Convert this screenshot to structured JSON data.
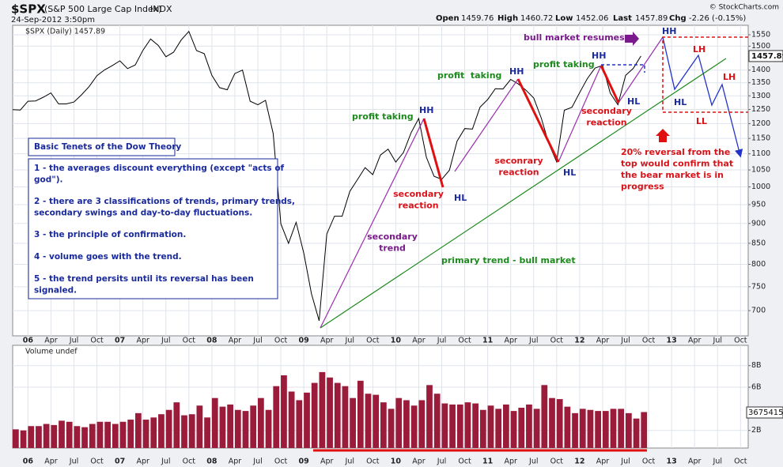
{
  "header": {
    "symbol": "$SPX",
    "name": "(S&P 500 Large Cap Index)",
    "exchange": "INDX",
    "date": "24-Sep-2012 3:50pm",
    "quote": [
      {
        "label": "Open",
        "value": 1459.76
      },
      {
        "label": "High",
        "value": 1460.72
      },
      {
        "label": "Low",
        "value": 1452.06
      },
      {
        "label": "Last",
        "value": 1457.89
      },
      {
        "label": "Chg",
        "value": "-2.26 (-0.15%)"
      }
    ],
    "credit": "© StockCharts.com"
  },
  "chart_data": [
    {
      "type": "line",
      "legend": "$SPX (Daily) 1457.89",
      "color": "#000000",
      "log_scale": true,
      "grid": true,
      "x": [
        "2005-11",
        "2005-12",
        "2006-01",
        "2006-02",
        "2006-03",
        "2006-04",
        "2006-05",
        "2006-06",
        "2006-07",
        "2006-08",
        "2006-09",
        "2006-10",
        "2006-11",
        "2006-12",
        "2007-01",
        "2007-02",
        "2007-03",
        "2007-04",
        "2007-05",
        "2007-06",
        "2007-07",
        "2007-08",
        "2007-09",
        "2007-10",
        "2007-11",
        "2007-12",
        "2008-01",
        "2008-02",
        "2008-03",
        "2008-04",
        "2008-05",
        "2008-06",
        "2008-07",
        "2008-08",
        "2008-09",
        "2008-10",
        "2008-11",
        "2008-12",
        "2009-01",
        "2009-02",
        "2009-03",
        "2009-04",
        "2009-05",
        "2009-06",
        "2009-07",
        "2009-08",
        "2009-09",
        "2009-10",
        "2009-11",
        "2009-12",
        "2010-01",
        "2010-02",
        "2010-03",
        "2010-04",
        "2010-05",
        "2010-06",
        "2010-07",
        "2010-08",
        "2010-09",
        "2010-10",
        "2010-11",
        "2010-12",
        "2011-01",
        "2011-02",
        "2011-03",
        "2011-04",
        "2011-05",
        "2011-06",
        "2011-07",
        "2011-08",
        "2011-09",
        "2011-10",
        "2011-11",
        "2011-12",
        "2012-01",
        "2012-02",
        "2012-03",
        "2012-04",
        "2012-05",
        "2012-06",
        "2012-07",
        "2012-08",
        "2012-09"
      ],
      "values": [
        1249,
        1248,
        1280,
        1281,
        1295,
        1311,
        1270,
        1270,
        1277,
        1304,
        1336,
        1378,
        1401,
        1418,
        1438,
        1406,
        1421,
        1482,
        1531,
        1503,
        1455,
        1474,
        1527,
        1565,
        1481,
        1468,
        1379,
        1331,
        1323,
        1386,
        1400,
        1280,
        1267,
        1283,
        1166,
        899,
        850,
        903,
        826,
        735,
        680,
        873,
        919,
        919,
        987,
        1021,
        1057,
        1036,
        1096,
        1115,
        1074,
        1104,
        1169,
        1218,
        1089,
        1031,
        1022,
        1049,
        1141,
        1183,
        1181,
        1258,
        1286,
        1327,
        1326,
        1363,
        1345,
        1321,
        1292,
        1219,
        1131,
        1075,
        1247,
        1258,
        1312,
        1366,
        1408,
        1419,
        1310,
        1267,
        1379,
        1407,
        1457.89
      ],
      "last_value": 1457.89,
      "xlim": [
        "2005-11",
        "2013-11"
      ],
      "xticks": [
        {
          "value": "2006-01",
          "label": "06"
        },
        {
          "value": "2006-04",
          "label": "Apr"
        },
        {
          "value": "2006-07",
          "label": "Jul"
        },
        {
          "value": "2006-10",
          "label": "Oct"
        },
        {
          "value": "2007-01",
          "label": "07"
        },
        {
          "value": "2007-04",
          "label": "Apr"
        },
        {
          "value": "2007-07",
          "label": "Jul"
        },
        {
          "value": "2007-10",
          "label": "Oct"
        },
        {
          "value": "2008-01",
          "label": "08"
        },
        {
          "value": "2008-04",
          "label": "Apr"
        },
        {
          "value": "2008-07",
          "label": "Jul"
        },
        {
          "value": "2008-10",
          "label": "Oct"
        },
        {
          "value": "2009-01",
          "label": "09"
        },
        {
          "value": "2009-04",
          "label": "Apr"
        },
        {
          "value": "2009-07",
          "label": "Jul"
        },
        {
          "value": "2009-10",
          "label": "Oct"
        },
        {
          "value": "2010-01",
          "label": "10"
        },
        {
          "value": "2010-04",
          "label": "Apr"
        },
        {
          "value": "2010-07",
          "label": "Jul"
        },
        {
          "value": "2010-10",
          "label": "Oct"
        },
        {
          "value": "2011-01",
          "label": "11"
        },
        {
          "value": "2011-04",
          "label": "Apr"
        },
        {
          "value": "2011-07",
          "label": "Jul"
        },
        {
          "value": "2011-10",
          "label": "Oct"
        },
        {
          "value": "2012-01",
          "label": "12"
        },
        {
          "value": "2012-04",
          "label": "Apr"
        },
        {
          "value": "2012-07",
          "label": "Jul"
        },
        {
          "value": "2012-10",
          "label": "Oct"
        },
        {
          "value": "2013-01",
          "label": "13"
        },
        {
          "value": "2013-04",
          "label": "Apr"
        },
        {
          "value": "2013-07",
          "label": "Jul"
        },
        {
          "value": "2013-10",
          "label": "Oct"
        }
      ],
      "ylim": [
        651,
        1593
      ],
      "yticks": [
        700,
        750,
        800,
        850,
        900,
        950,
        1000,
        1050,
        1100,
        1150,
        1200,
        1250,
        1300,
        1350,
        1400,
        1500,
        1550
      ]
    },
    {
      "type": "bar",
      "legend": "Volume undef",
      "color": "#9b1b3a",
      "grid": true,
      "x": [
        "2005-11",
        "2005-12",
        "2006-01",
        "2006-02",
        "2006-03",
        "2006-04",
        "2006-05",
        "2006-06",
        "2006-07",
        "2006-08",
        "2006-09",
        "2006-10",
        "2006-11",
        "2006-12",
        "2007-01",
        "2007-02",
        "2007-03",
        "2007-04",
        "2007-05",
        "2007-06",
        "2007-07",
        "2007-08",
        "2007-09",
        "2007-10",
        "2007-11",
        "2007-12",
        "2008-01",
        "2008-02",
        "2008-03",
        "2008-04",
        "2008-05",
        "2008-06",
        "2008-07",
        "2008-08",
        "2008-09",
        "2008-10",
        "2008-11",
        "2008-12",
        "2009-01",
        "2009-02",
        "2009-03",
        "2009-04",
        "2009-05",
        "2009-06",
        "2009-07",
        "2009-08",
        "2009-09",
        "2009-10",
        "2009-11",
        "2009-12",
        "2010-01",
        "2010-02",
        "2010-03",
        "2010-04",
        "2010-05",
        "2010-06",
        "2010-07",
        "2010-08",
        "2010-09",
        "2010-10",
        "2010-11",
        "2010-12",
        "2011-01",
        "2011-02",
        "2011-03",
        "2011-04",
        "2011-05",
        "2011-06",
        "2011-07",
        "2011-08",
        "2011-09",
        "2011-10",
        "2011-11",
        "2011-12",
        "2012-01",
        "2012-02",
        "2012-03",
        "2012-04",
        "2012-05",
        "2012-06",
        "2012-07",
        "2012-08",
        "2012-09"
      ],
      "values": [
        2100000000,
        2000000000,
        2400000000,
        2400000000,
        2600000000,
        2500000000,
        2900000000,
        2800000000,
        2400000000,
        2300000000,
        2600000000,
        2800000000,
        2800000000,
        2600000000,
        2800000000,
        3000000000,
        3600000000,
        3000000000,
        3200000000,
        3500000000,
        3900000000,
        4600000000,
        3400000000,
        3500000000,
        4300000000,
        3200000000,
        5000000000,
        4200000000,
        4400000000,
        3900000000,
        3800000000,
        4300000000,
        5000000000,
        3900000000,
        6100000000,
        7100000000,
        5600000000,
        4800000000,
        5500000000,
        6400000000,
        7400000000,
        6900000000,
        6400000000,
        6100000000,
        5000000000,
        6600000000,
        5400000000,
        5300000000,
        4600000000,
        4000000000,
        5000000000,
        4800000000,
        4300000000,
        4800000000,
        6200000000,
        5400000000,
        4500000000,
        4400000000,
        4400000000,
        4600000000,
        4500000000,
        3900000000,
        4300000000,
        4000000000,
        4400000000,
        3800000000,
        4100000000,
        4400000000,
        4000000000,
        6200000000,
        5000000000,
        4900000000,
        4200000000,
        3600000000,
        4000000000,
        3900000000,
        3800000000,
        3800000000,
        4000000000,
        4000000000,
        3600000000,
        3100000000,
        3700000000
      ],
      "last_label": "3675415",
      "xlim": [
        "2005-11",
        "2013-11"
      ],
      "xticks": [
        {
          "value": "2006-01",
          "label": "06"
        },
        {
          "value": "2006-04",
          "label": "Apr"
        },
        {
          "value": "2006-07",
          "label": "Jul"
        },
        {
          "value": "2006-10",
          "label": "Oct"
        },
        {
          "value": "2007-01",
          "label": "07"
        },
        {
          "value": "2007-04",
          "label": "Apr"
        },
        {
          "value": "2007-07",
          "label": "Jul"
        },
        {
          "value": "2007-10",
          "label": "Oct"
        },
        {
          "value": "2008-01",
          "label": "08"
        },
        {
          "value": "2008-04",
          "label": "Apr"
        },
        {
          "value": "2008-07",
          "label": "Jul"
        },
        {
          "value": "2008-10",
          "label": "Oct"
        },
        {
          "value": "2009-01",
          "label": "09"
        },
        {
          "value": "2009-04",
          "label": "Apr"
        },
        {
          "value": "2009-07",
          "label": "Jul"
        },
        {
          "value": "2009-10",
          "label": "Oct"
        },
        {
          "value": "2010-01",
          "label": "10"
        },
        {
          "value": "2010-04",
          "label": "Apr"
        },
        {
          "value": "2010-07",
          "label": "Jul"
        },
        {
          "value": "2010-10",
          "label": "Oct"
        },
        {
          "value": "2011-01",
          "label": "11"
        },
        {
          "value": "2011-04",
          "label": "Apr"
        },
        {
          "value": "2011-07",
          "label": "Jul"
        },
        {
          "value": "2011-10",
          "label": "Oct"
        },
        {
          "value": "2012-01",
          "label": "12"
        },
        {
          "value": "2012-04",
          "label": "Apr"
        },
        {
          "value": "2012-07",
          "label": "Jul"
        },
        {
          "value": "2012-10",
          "label": "Oct"
        },
        {
          "value": "2013-01",
          "label": "13"
        },
        {
          "value": "2013-04",
          "label": "Apr"
        },
        {
          "value": "2013-07",
          "label": "Jul"
        },
        {
          "value": "2013-10",
          "label": "Oct"
        }
      ],
      "ylim": [
        370000000,
        9880000000
      ],
      "yticks": [
        {
          "value": 2000000000,
          "label": "2B"
        },
        {
          "value": 6000000000,
          "label": "6B"
        },
        {
          "value": 8000000000,
          "label": "8B"
        }
      ]
    }
  ],
  "annotations": [
    {
      "lines": [
        "bull market resumes"
      ]
    },
    {
      "lines": [
        "HH"
      ]
    },
    {
      "lines": [
        "LH"
      ]
    },
    {
      "lines": [
        "LH"
      ]
    },
    {
      "lines": [
        "HL"
      ]
    },
    {
      "lines": [
        "LL"
      ]
    },
    {
      "lines": [
        "HH"
      ]
    },
    {
      "lines": [
        "HH"
      ]
    },
    {
      "lines": [
        "HH"
      ]
    },
    {
      "lines": [
        "profit taking"
      ]
    },
    {
      "lines": [
        "profit  taking"
      ]
    },
    {
      "lines": [
        "profit taking"
      ]
    },
    {
      "lines": [
        "secondary",
        "reaction"
      ]
    },
    {
      "lines": [
        "HL"
      ]
    },
    {
      "lines": [
        "seconrary",
        "reaction"
      ]
    },
    {
      "lines": [
        "HL"
      ]
    },
    {
      "lines": [
        "secondary",
        "reaction"
      ]
    },
    {
      "lines": [
        "HL"
      ]
    },
    {
      "lines": [
        "secondary",
        "trend"
      ]
    },
    {
      "lines": [
        "primary trend - bull market"
      ]
    },
    {
      "lines": [
        "20% reversal from the",
        "top would confirm that",
        "the bear market is in",
        "progress"
      ]
    }
  ],
  "dow_theory": {
    "title": "Basic Tenets of the Dow Theory",
    "items": [
      [
        "1 - the averages discount everything (except \"acts of",
        "god\")."
      ],
      [
        "2 - there are 3 classifications of trends, primary trends,",
        "secondary swings and day-to-day fluctuations."
      ],
      [
        "3 - the principle of confirmation."
      ],
      [
        "4 - volume goes with the trend."
      ],
      [
        "5 - the trend persits until its reversal has been",
        "signaled."
      ]
    ]
  }
}
